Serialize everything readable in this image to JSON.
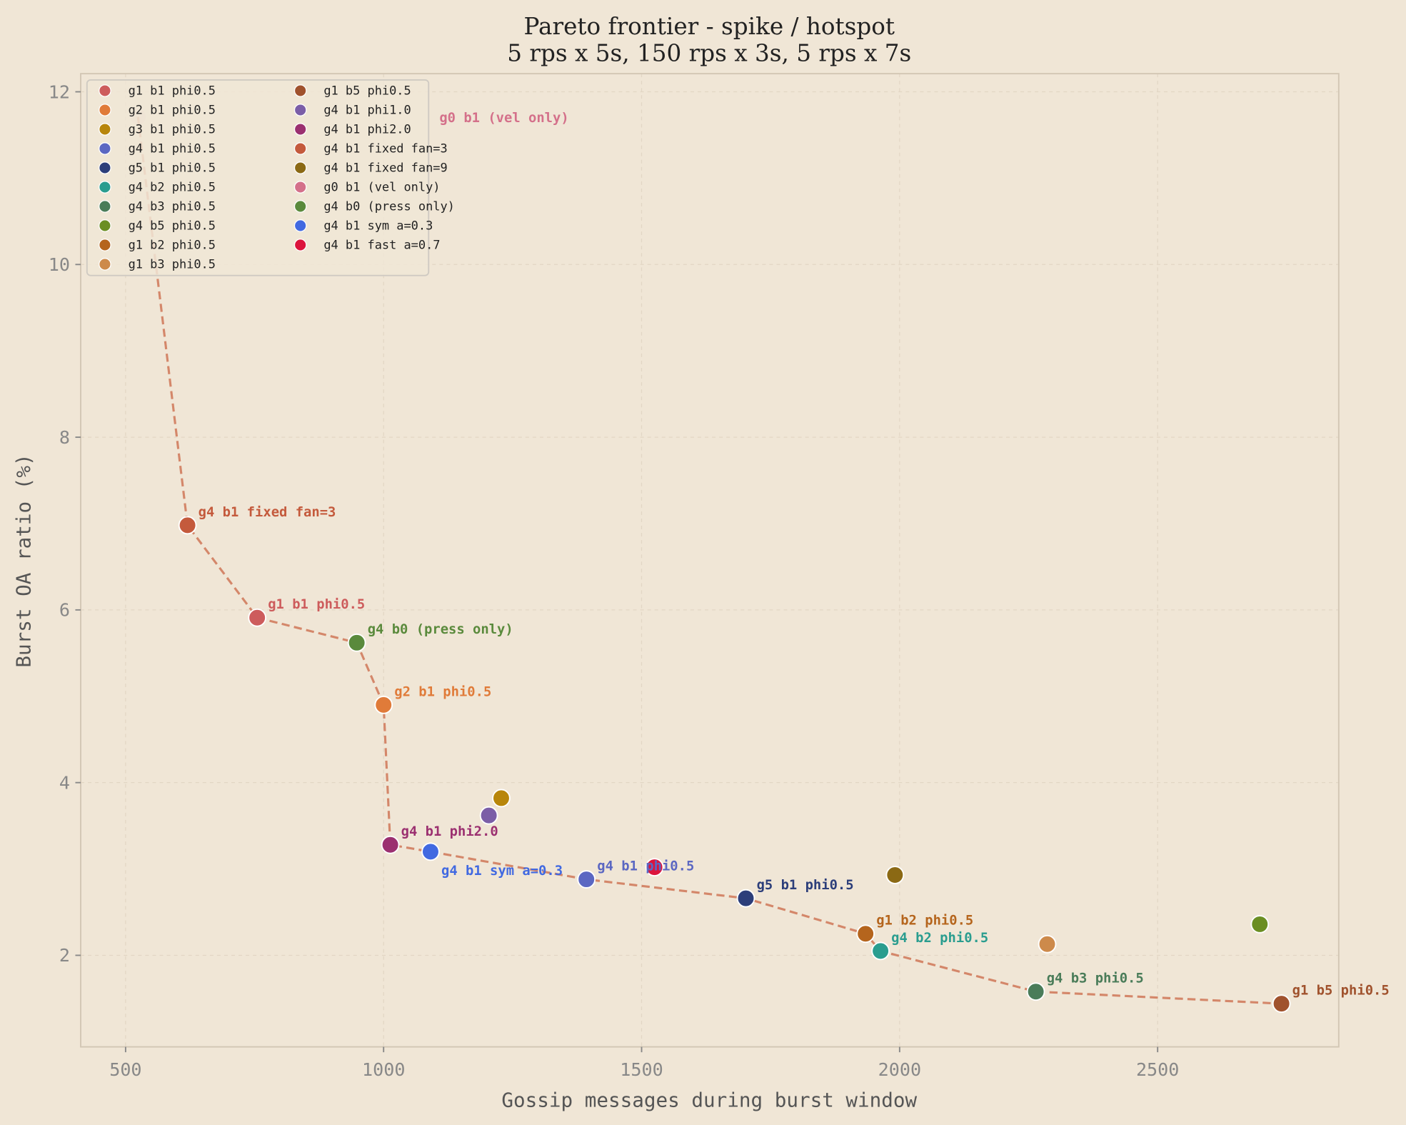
{
  "chart_data": {
    "type": "scatter",
    "title": "Pareto frontier - spike / hotspot",
    "subtitle": "5 rps x 5s, 150 rps x 3s, 5 rps x 7s",
    "xlabel": "Gossip messages during burst window",
    "ylabel": "Burst OA ratio (%)",
    "xlim": [
      413,
      2851
    ],
    "ylim": [
      0.94,
      12.21
    ],
    "xticks": [
      500,
      1000,
      1500,
      2000,
      2500
    ],
    "yticks": [
      2,
      4,
      6,
      8,
      10,
      12
    ],
    "grid": true,
    "legend_placement": "top-left",
    "frontier_color": "#d4876a",
    "background": "#f0e6d6",
    "series": [
      {
        "name": "g1 b1 phi0.5",
        "color": "#cd5c5c",
        "x": 755,
        "y": 5.91,
        "label": true
      },
      {
        "name": "g2 b1 phi0.5",
        "color": "#e07b39",
        "x": 1000,
        "y": 4.9,
        "label": true
      },
      {
        "name": "g3 b1 phi0.5",
        "color": "#b8860b",
        "x": 1228,
        "y": 3.82,
        "label": false
      },
      {
        "name": "g4 b1 phi0.5",
        "color": "#5b67c2",
        "x": 1393,
        "y": 2.88,
        "label": true
      },
      {
        "name": "g5 b1 phi0.5",
        "color": "#2c3e7a",
        "x": 1702,
        "y": 2.66,
        "label": true
      },
      {
        "name": "g4 b2 phi0.5",
        "color": "#2a9d8f",
        "x": 1963,
        "y": 2.05,
        "label": true
      },
      {
        "name": "g4 b3 phi0.5",
        "color": "#4a7c59",
        "x": 2264,
        "y": 1.58,
        "label": true
      },
      {
        "name": "g4 b5 phi0.5",
        "color": "#6b8e23",
        "x": 2698,
        "y": 2.36,
        "label": false
      },
      {
        "name": "g1 b2 phi0.5",
        "color": "#b5651d",
        "x": 1934,
        "y": 2.25,
        "label": true
      },
      {
        "name": "g1 b3 phi0.5",
        "color": "#cd8a4b",
        "x": 2286,
        "y": 2.13,
        "label": false
      },
      {
        "name": "g1 b5 phi0.5",
        "color": "#a0522d",
        "x": 2740,
        "y": 1.44,
        "label": true
      },
      {
        "name": "g4 b1 phi1.0",
        "color": "#7b5ea7",
        "x": 1204,
        "y": 3.62,
        "label": false
      },
      {
        "name": "g4 b1 phi2.0",
        "color": "#9b3070",
        "x": 1013,
        "y": 3.28,
        "label": true
      },
      {
        "name": "g4 b1 fixed fan=3",
        "color": "#c45a3c",
        "x": 620,
        "y": 6.98,
        "label": true
      },
      {
        "name": "g4 b1 fixed fan=9",
        "color": "#8b6914",
        "x": 1991,
        "y": 2.93,
        "label": false
      },
      {
        "name": "g0 b1 (vel only)",
        "color": "#d4708a",
        "x": 524,
        "y": 11.71,
        "label": true,
        "faded": true
      },
      {
        "name": "g4 b0 (press only)",
        "color": "#5a8a3c",
        "x": 948,
        "y": 5.62,
        "label": true
      },
      {
        "name": "g4 b1 sym a=0.3",
        "color": "#4169e1",
        "x": 1091,
        "y": 3.2,
        "label": true
      },
      {
        "name": "g4 b1 fast a=0.7",
        "color": "#dc143c",
        "x": 1525,
        "y": 3.02,
        "label": false
      }
    ],
    "frontier": [
      "g0 b1 (vel only)",
      "g4 b1 fixed fan=3",
      "g1 b1 phi0.5",
      "g4 b0 (press only)",
      "g2 b1 phi0.5",
      "g4 b1 phi2.0",
      "g4 b1 sym a=0.3",
      "g4 b1 phi0.5",
      "g5 b1 phi0.5",
      "g1 b2 phi0.5",
      "g4 b2 phi0.5",
      "g4 b3 phi0.5",
      "g1 b5 phi0.5"
    ]
  }
}
